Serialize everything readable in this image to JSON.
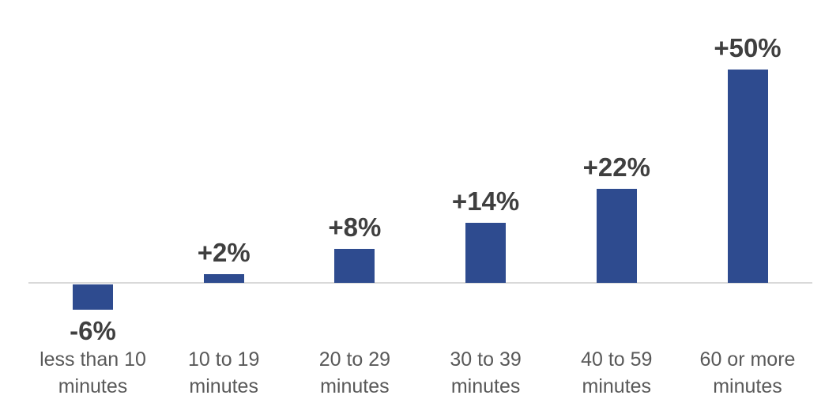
{
  "chart_data": {
    "type": "bar",
    "title": "",
    "xlabel": "",
    "ylabel": "",
    "categories": [
      "less than 10 minutes",
      "10 to 19 minutes",
      "20 to 29 minutes",
      "30 to 39 minutes",
      "40 to 59 minutes",
      "60 or more minutes"
    ],
    "category_lines": [
      [
        "less than 10",
        "minutes"
      ],
      [
        "10 to 19",
        "minutes"
      ],
      [
        "20 to 29",
        "minutes"
      ],
      [
        "30 to 39",
        "minutes"
      ],
      [
        "40 to 59",
        "minutes"
      ],
      [
        "60 or more",
        "minutes"
      ]
    ],
    "values": [
      -6,
      2,
      8,
      14,
      22,
      50
    ],
    "data_labels": [
      "-6%",
      "+2%",
      "+8%",
      "+14%",
      "+22%",
      "+50%"
    ],
    "ylim": [
      -10,
      55
    ],
    "grid": false,
    "legend": "none",
    "colors": {
      "bar": "#2E4B8F",
      "axis_line": "#D9D9D9",
      "data_label": "#3F3F3F",
      "category_label": "#595959"
    }
  }
}
